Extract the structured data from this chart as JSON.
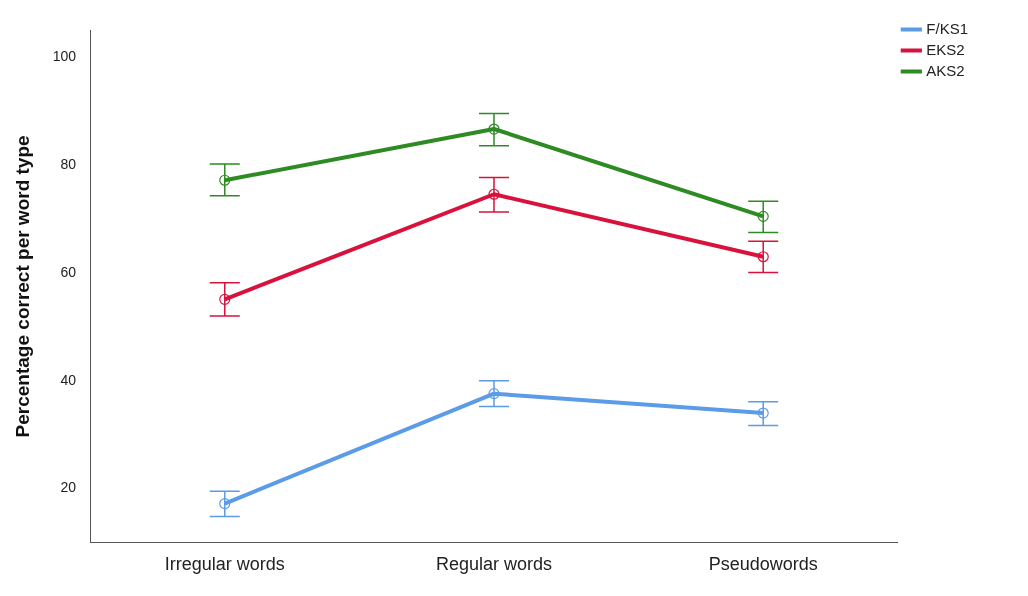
{
  "chart_data": {
    "type": "line",
    "ylabel": "Percentage correct per word type",
    "categories": [
      "Irregular words",
      "Regular words",
      "Pseudowords"
    ],
    "series": [
      {
        "name": "F/KS1",
        "color": "#5b9be8",
        "values": [
          17.2,
          37.6,
          34.0
        ],
        "errors": [
          [
            14.8,
            19.5
          ],
          [
            35.2,
            40.0
          ],
          [
            31.7,
            36.1
          ]
        ]
      },
      {
        "name": "EKS2",
        "color": "#d8123c",
        "values": [
          55.1,
          74.6,
          63.0
        ],
        "errors": [
          [
            52.0,
            58.2
          ],
          [
            71.3,
            77.7
          ],
          [
            60.1,
            65.9
          ]
        ]
      },
      {
        "name": "AKS2",
        "color": "#2e8b24",
        "values": [
          77.2,
          86.7,
          70.5
        ],
        "errors": [
          [
            74.3,
            80.2
          ],
          [
            83.6,
            89.6
          ],
          [
            67.5,
            73.3
          ]
        ]
      }
    ],
    "ylim": [
      10,
      105
    ],
    "yticks": [
      20,
      40,
      60,
      80,
      100
    ],
    "grid": false,
    "legend": "top right",
    "marker": "circle",
    "line_style": "solid"
  }
}
